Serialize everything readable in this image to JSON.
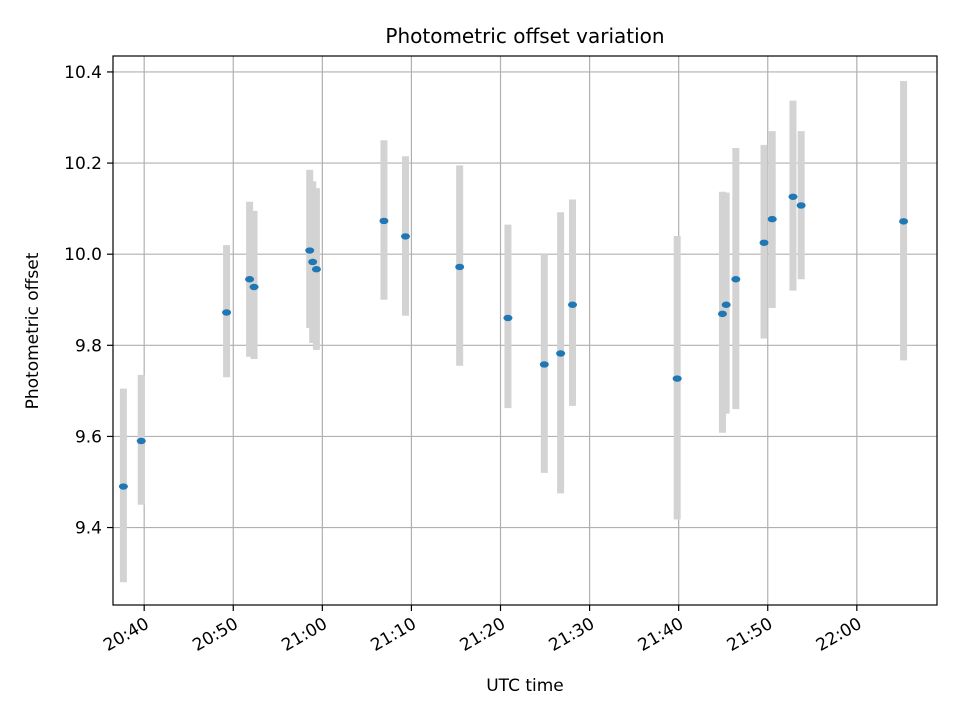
{
  "chart_data": {
    "type": "scatter",
    "title": "Photometric offset variation",
    "xlabel": "UTC time",
    "ylabel": "Photometric offset",
    "grid": true,
    "x_axis": {
      "kind": "time",
      "min": "20:36:30",
      "max": "22:09:00"
    },
    "ylim": [
      9.23,
      10.435
    ],
    "x_ticks": [
      "20:40",
      "20:50",
      "21:00",
      "21:10",
      "21:20",
      "21:30",
      "21:40",
      "21:50",
      "22:00"
    ],
    "y_ticks": [
      9.4,
      9.6,
      9.8,
      10.0,
      10.2,
      10.4
    ],
    "y_tick_labels": [
      "9.4",
      "9.6",
      "9.8",
      "10.0",
      "10.2",
      "10.4"
    ],
    "colors": {
      "marker": "#1f77b4",
      "errorbar": "#d3d3d3",
      "grid": "#b0b0b0"
    },
    "series": [
      {
        "points": [
          {
            "x": "20:37:40",
            "y": 9.49,
            "ylo": 9.28,
            "yhi": 9.705
          },
          {
            "x": "20:39:40",
            "y": 9.59,
            "ylo": 9.45,
            "yhi": 9.735
          },
          {
            "x": "20:49:15",
            "y": 9.872,
            "ylo": 9.73,
            "yhi": 10.02
          },
          {
            "x": "20:51:50",
            "y": 9.945,
            "ylo": 9.775,
            "yhi": 10.115
          },
          {
            "x": "20:52:20",
            "y": 9.928,
            "ylo": 9.77,
            "yhi": 10.095
          },
          {
            "x": "20:58:35",
            "y": 10.008,
            "ylo": 9.838,
            "yhi": 10.185
          },
          {
            "x": "20:58:55",
            "y": 9.983,
            "ylo": 9.805,
            "yhi": 10.16
          },
          {
            "x": "20:59:20",
            "y": 9.967,
            "ylo": 9.79,
            "yhi": 10.145
          },
          {
            "x": "21:06:55",
            "y": 10.073,
            "ylo": 9.9,
            "yhi": 10.25
          },
          {
            "x": "21:09:20",
            "y": 10.039,
            "ylo": 9.865,
            "yhi": 10.215
          },
          {
            "x": "21:15:25",
            "y": 9.972,
            "ylo": 9.755,
            "yhi": 10.195
          },
          {
            "x": "21:20:50",
            "y": 9.86,
            "ylo": 9.662,
            "yhi": 10.065
          },
          {
            "x": "21:24:55",
            "y": 9.758,
            "ylo": 9.52,
            "yhi": 10.0
          },
          {
            "x": "21:26:45",
            "y": 9.782,
            "ylo": 9.475,
            "yhi": 10.092
          },
          {
            "x": "21:28:05",
            "y": 9.889,
            "ylo": 9.667,
            "yhi": 10.12
          },
          {
            "x": "21:39:50",
            "y": 9.727,
            "ylo": 9.418,
            "yhi": 10.04
          },
          {
            "x": "21:44:55",
            "y": 9.869,
            "ylo": 9.608,
            "yhi": 10.137
          },
          {
            "x": "21:45:20",
            "y": 9.889,
            "ylo": 9.65,
            "yhi": 10.135
          },
          {
            "x": "21:46:25",
            "y": 9.945,
            "ylo": 9.66,
            "yhi": 10.233
          },
          {
            "x": "21:49:35",
            "y": 10.025,
            "ylo": 9.815,
            "yhi": 10.24
          },
          {
            "x": "21:50:30",
            "y": 10.077,
            "ylo": 9.882,
            "yhi": 10.27
          },
          {
            "x": "21:52:50",
            "y": 10.126,
            "ylo": 9.92,
            "yhi": 10.337
          },
          {
            "x": "21:53:45",
            "y": 10.107,
            "ylo": 9.945,
            "yhi": 10.27
          },
          {
            "x": "22:05:15",
            "y": 10.072,
            "ylo": 9.767,
            "yhi": 10.38
          }
        ]
      }
    ]
  }
}
